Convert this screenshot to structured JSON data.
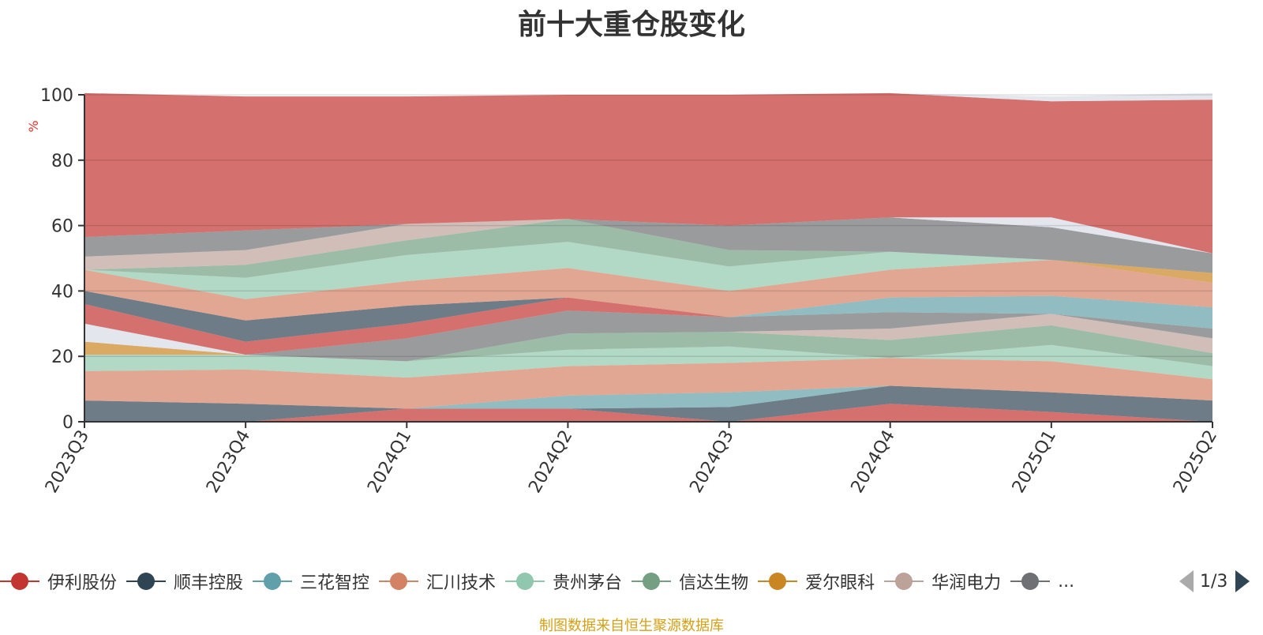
{
  "title": "前十大重仓股变化",
  "source_note": "制图数据来自恒生聚源数据库",
  "legend": {
    "page": "1/3",
    "items": [
      {
        "name": "伊利股份",
        "color": "#c23531"
      },
      {
        "name": "顺丰控股",
        "color": "#2f4554"
      },
      {
        "name": "三花智控",
        "color": "#61a0a8"
      },
      {
        "name": "汇川技术",
        "color": "#d48265"
      },
      {
        "name": "贵州茅台",
        "color": "#91c7ae"
      },
      {
        "name": "信达生物",
        "color": "#749f83"
      },
      {
        "name": "爱尔眼科",
        "color": "#ca8622"
      },
      {
        "name": "华润电力",
        "color": "#bda29a"
      },
      {
        "name": "...",
        "color": "#6e7074"
      }
    ]
  },
  "chart_data": {
    "type": "area",
    "stacked": true,
    "title": "前十大重仓股变化",
    "ylabel": "%",
    "ylim": [
      0,
      100
    ],
    "yticks": [
      0,
      20,
      40,
      60,
      80,
      100
    ],
    "x": [
      "2023Q3",
      "2023Q4",
      "2024Q1",
      "2024Q2",
      "2024Q3",
      "2024Q4",
      "2025Q1",
      "2025Q2"
    ],
    "grid": true,
    "legend_position": "bottom",
    "layers": [
      {
        "color": "#c23531",
        "values": [
          0,
          0,
          4,
          4,
          0,
          5.5,
          3,
          0
        ]
      },
      {
        "color": "#2f4554",
        "values": [
          6.5,
          5.5,
          0,
          0,
          4.5,
          5.5,
          6,
          6.5
        ]
      },
      {
        "color": "#61a0a8",
        "values": [
          0,
          0,
          0,
          4,
          4.5,
          0,
          0,
          0
        ]
      },
      {
        "color": "#d48265",
        "values": [
          9,
          10.5,
          9.5,
          9,
          9,
          8.5,
          9.5,
          6.5
        ]
      },
      {
        "color": "#91c7ae",
        "values": [
          5,
          4.5,
          5,
          5,
          5,
          0,
          5,
          4
        ]
      },
      {
        "color": "#749f83",
        "values": [
          0,
          0,
          0,
          5,
          4.5,
          5.5,
          6,
          4
        ]
      },
      {
        "color": "#bda29a",
        "values": [
          0,
          0,
          0,
          0,
          0,
          3.5,
          3.5,
          4.5
        ]
      },
      {
        "color": "#ca8622",
        "values": [
          4,
          0,
          0,
          0,
          0,
          0,
          0,
          0
        ]
      },
      {
        "color": "#6e7074",
        "values": [
          0,
          0,
          7,
          7,
          4.5,
          5,
          0,
          3
        ]
      },
      {
        "color": "#d7dde5",
        "values": [
          5.5,
          0,
          0,
          0,
          0,
          0,
          0,
          0
        ]
      },
      {
        "color": "#c23531",
        "values": [
          6,
          4,
          4.5,
          4,
          0,
          0,
          0,
          0
        ]
      },
      {
        "color": "#2f4554",
        "values": [
          4,
          6.5,
          5.5,
          0,
          0,
          0,
          0,
          0
        ]
      },
      {
        "color": "#61a0a8",
        "values": [
          0,
          0,
          0,
          0,
          0,
          4.5,
          5.5,
          6.5
        ]
      },
      {
        "color": "#d48265",
        "values": [
          6.5,
          6.5,
          7.5,
          9,
          8,
          8.5,
          11,
          7.5
        ]
      },
      {
        "color": "#91c7ae",
        "values": [
          0,
          6.5,
          8,
          8,
          7.5,
          5.5,
          0,
          0
        ]
      },
      {
        "color": "#749f83",
        "values": [
          0,
          4,
          4.5,
          7,
          5,
          0,
          0,
          0
        ]
      },
      {
        "color": "#bda29a",
        "values": [
          4,
          4.5,
          5,
          0,
          0,
          0,
          0,
          0
        ]
      },
      {
        "color": "#ca8622",
        "values": [
          0,
          0,
          0,
          0,
          0,
          0,
          0,
          3
        ]
      },
      {
        "color": "#6e7074",
        "values": [
          6,
          6,
          0,
          0,
          7.5,
          10.5,
          10,
          6
        ]
      },
      {
        "color": "#d7dde5",
        "values": [
          0,
          0,
          0,
          0,
          0,
          0,
          3,
          0
        ]
      },
      {
        "color": "#c23531",
        "values": [
          44,
          41,
          39,
          38,
          40,
          38,
          35.5,
          47
        ]
      },
      {
        "color": "#d7dde5",
        "values": [
          0,
          0,
          0,
          0,
          0,
          0,
          1.5,
          2
        ]
      }
    ]
  }
}
